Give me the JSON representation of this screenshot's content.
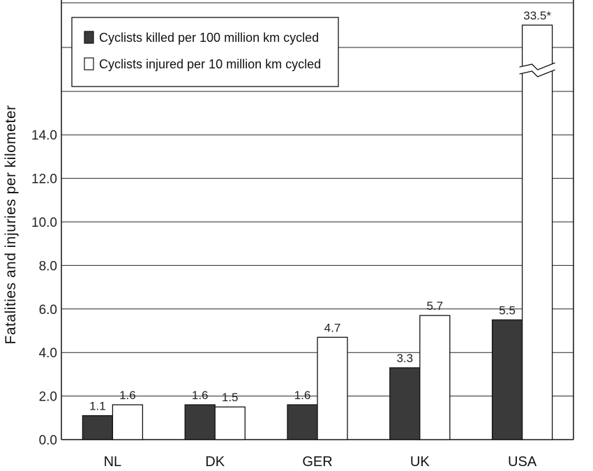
{
  "chart_data": {
    "type": "bar",
    "title": "",
    "xlabel": "",
    "ylabel": "Fatalities and injuries per kilometer",
    "categories": [
      "NL",
      "DK",
      "GER",
      "UK",
      "USA"
    ],
    "series": [
      {
        "name": "Cyclists killed per 100 million km cycled",
        "color": "#3a3a3a",
        "values": [
          1.1,
          1.6,
          1.6,
          3.3,
          5.5
        ],
        "labels": [
          "1.1",
          "1.6",
          "1.6",
          "3.3",
          "5.5"
        ]
      },
      {
        "name": "Cyclists injured per 10 million km cycled",
        "color": "#ffffff",
        "values": [
          1.6,
          1.5,
          4.7,
          5.7,
          33.5
        ],
        "labels": [
          "1.6",
          "1.5",
          "4.7",
          "5.7",
          "33.5*"
        ]
      }
    ],
    "ylim": [
      0,
      14
    ],
    "yticks": [
      "0.0",
      "2.0",
      "4.0",
      "6.0",
      "8.0",
      "10.0",
      "12.0",
      "14.0"
    ],
    "axis_break": true,
    "grid": true,
    "legend_position": "top-left"
  }
}
